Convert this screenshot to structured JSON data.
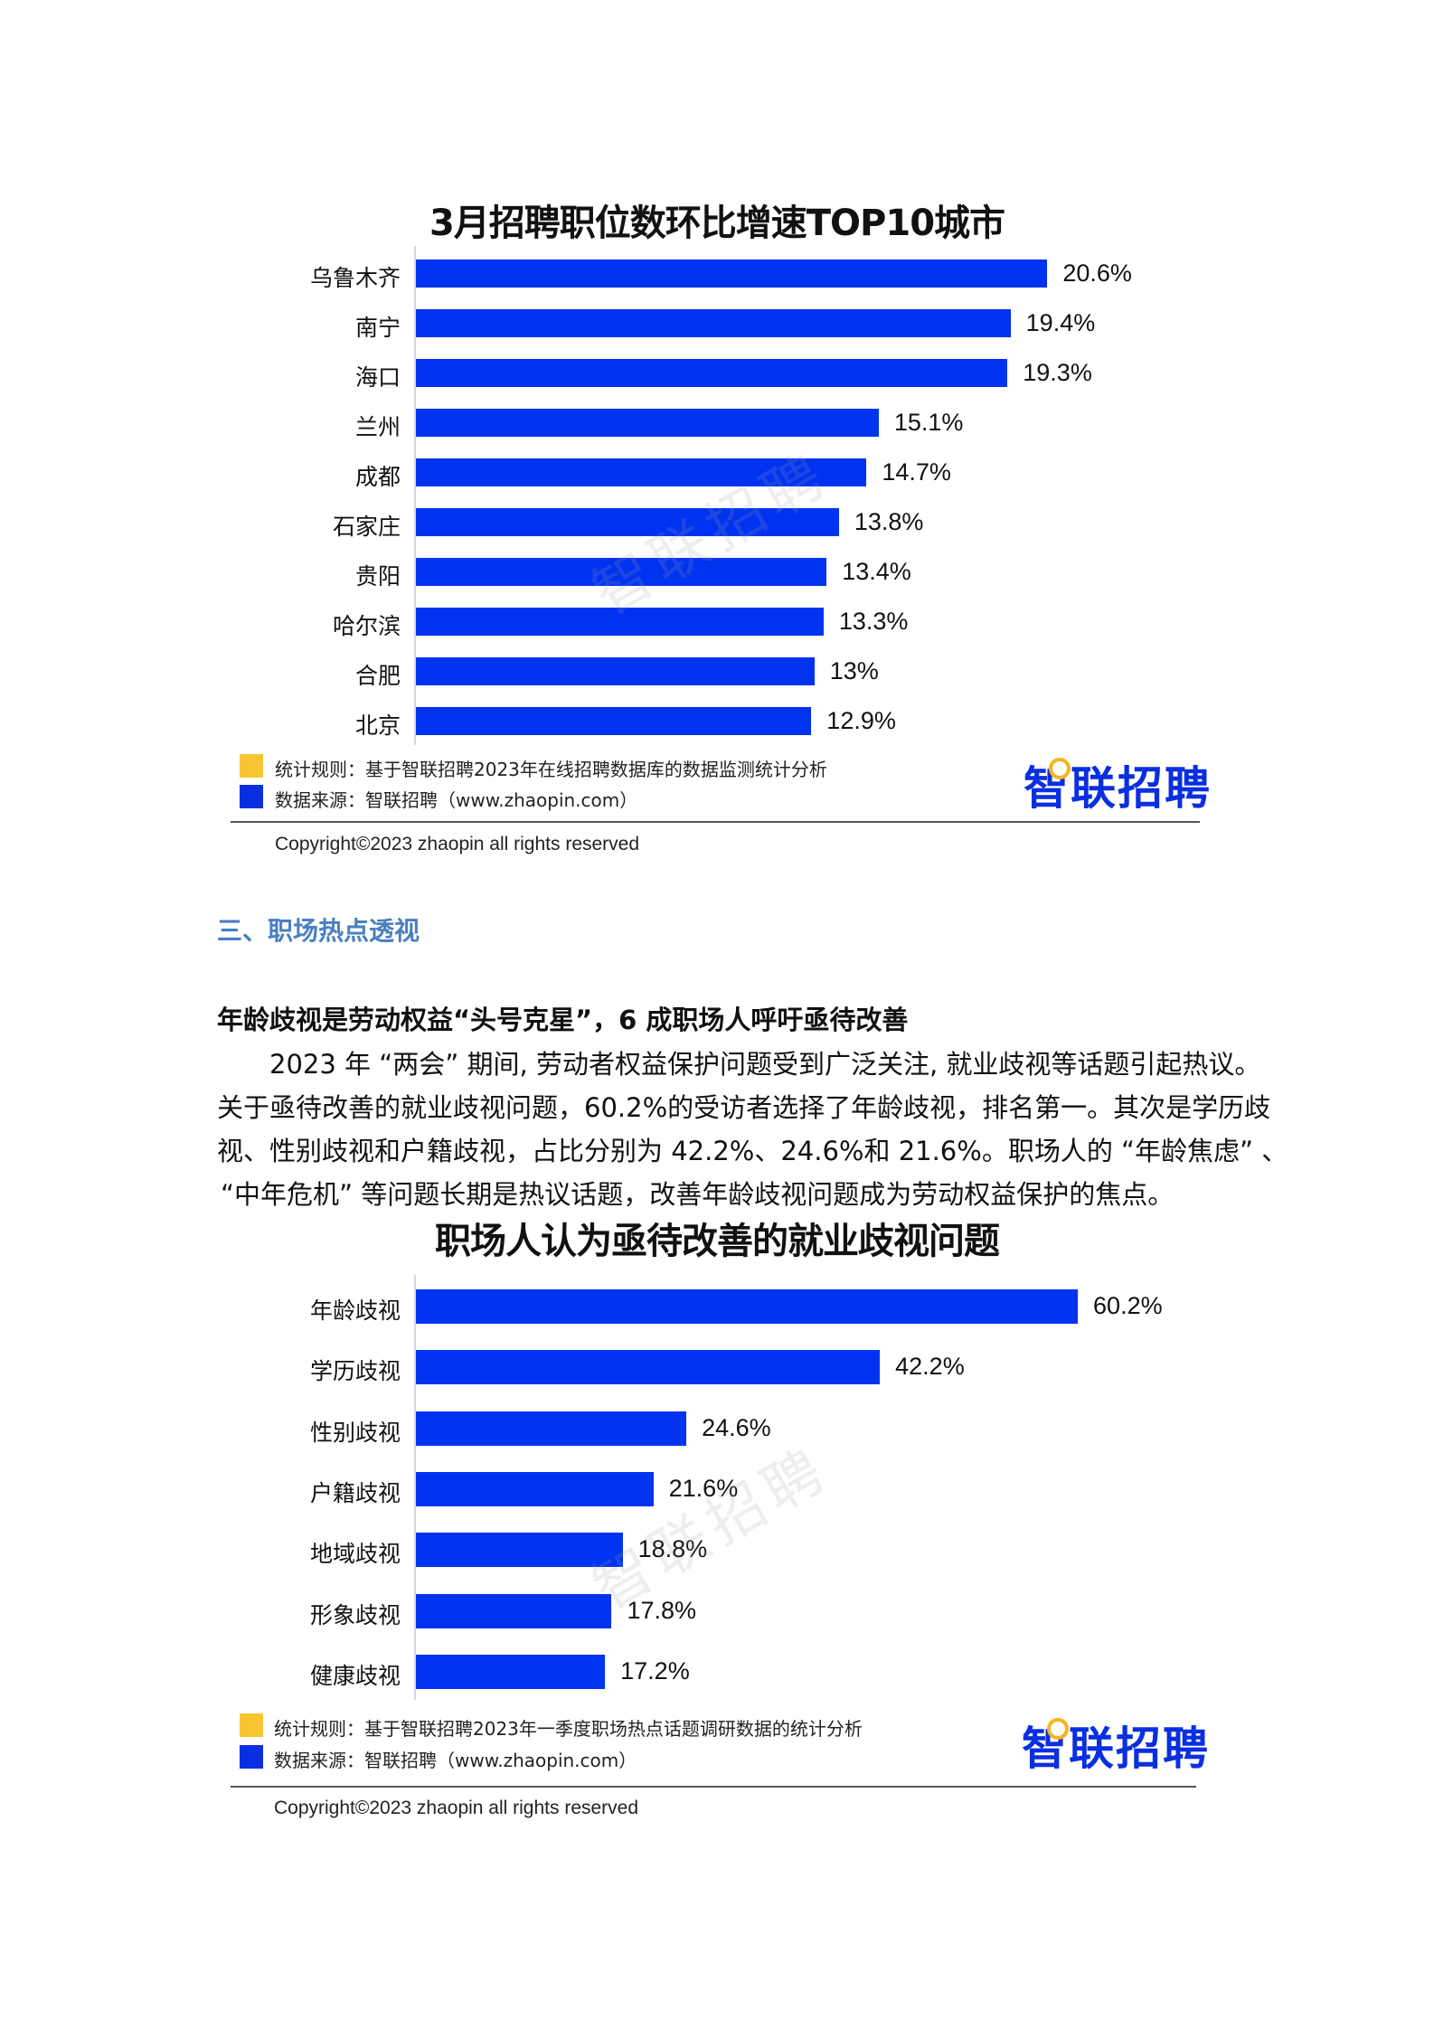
{
  "chart1": {
    "title": "3月招聘职位数环比增速TOP10城市",
    "watermark": "智联招聘",
    "footer": {
      "rule": "统计规则：基于智联招聘2023年在线招聘数据库的数据监测统计分析",
      "source": "数据来源：智联招聘（www.zhaopin.com）",
      "logo": "智联招聘",
      "copyright": "Copyright©2023 zhaopin all rights reserved"
    }
  },
  "section": {
    "heading": "三、职场热点透视",
    "subheading": "年龄歧视是劳动权益“头号克星”，6 成职场人呼吁亟待改善",
    "paragraph": [
      "2023 年 “两会” 期间, 劳动者权益保护问题受到广泛关注, 就业歧视等话题引起热议。",
      "关于亟待改善的就业歧视问题，60.2%的受访者选择了年龄歧视，排名第一。其次是学历歧",
      "视、性别歧视和户籍歧视，占比分别为 42.2%、24.6%和 21.6%。职场人的 “年龄焦虑” 、",
      "“中年危机” 等问题长期是热议话题，改善年龄歧视问题成为劳动权益保护的焦点。"
    ]
  },
  "chart2": {
    "title": "职场人认为亟待改善的就业歧视问题",
    "watermark": "智联招聘",
    "footer": {
      "rule": "统计规则：基于智联招聘2023年一季度职场热点话题调研数据的统计分析",
      "source": "数据来源：智联招聘（www.zhaopin.com）",
      "logo": "智联招聘",
      "copyright": "Copyright©2023 zhaopin all rights reserved"
    }
  },
  "colors": {
    "bar": "#0033f0",
    "legend_rule": "#f7c531",
    "legend_source": "#0a2fe0",
    "section_heading": "#4a7fc1"
  },
  "chart_data": [
    {
      "type": "bar",
      "orientation": "horizontal",
      "title": "3月招聘职位数环比增速TOP10城市",
      "xlabel": "",
      "ylabel": "",
      "categories": [
        "乌鲁木齐",
        "南宁",
        "海口",
        "兰州",
        "成都",
        "石家庄",
        "贵阳",
        "哈尔滨",
        "合肥",
        "北京"
      ],
      "values": [
        20.6,
        19.4,
        19.3,
        15.1,
        14.7,
        13.8,
        13.4,
        13.3,
        13,
        12.9
      ],
      "value_labels": [
        "20.6%",
        "19.4%",
        "19.3%",
        "15.1%",
        "14.7%",
        "13.8%",
        "13.4%",
        "13.3%",
        "13%",
        "12.9%"
      ],
      "unit": "%",
      "grid": false,
      "legend": "none",
      "color": "#0033f0"
    },
    {
      "type": "bar",
      "orientation": "horizontal",
      "title": "职场人认为亟待改善的就业歧视问题",
      "xlabel": "",
      "ylabel": "",
      "categories": [
        "年龄歧视",
        "学历歧视",
        "性别歧视",
        "户籍歧视",
        "地域歧视",
        "形象歧视",
        "健康歧视"
      ],
      "values": [
        60.2,
        42.2,
        24.6,
        21.6,
        18.8,
        17.8,
        17.2
      ],
      "value_labels": [
        "60.2%",
        "42.2%",
        "24.6%",
        "21.6%",
        "18.8%",
        "17.8%",
        "17.2%"
      ],
      "unit": "%",
      "grid": false,
      "legend": "none",
      "color": "#0033f0"
    }
  ]
}
